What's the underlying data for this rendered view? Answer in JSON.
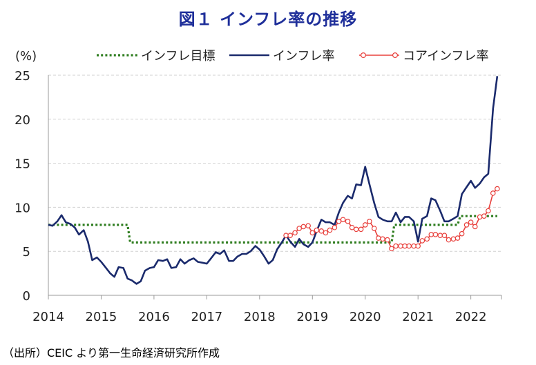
{
  "title": "図１ インフレ率の推移",
  "source": "（出所）CEIC より第一生命経済研究所作成",
  "colors": {
    "title": "#1f2f9a",
    "target": "#2e7d1f",
    "inflation": "#1a2a6c",
    "core": "#e8403c",
    "grid": "#d0d0d0"
  },
  "chart_data": {
    "type": "line",
    "title": "",
    "ylabel": "(%)",
    "xlabel": "",
    "xlim": [
      2014.0,
      2022.58
    ],
    "ylim": [
      0,
      25
    ],
    "yticks": [
      0,
      5,
      10,
      15,
      20,
      25
    ],
    "xticks": [
      "2014",
      "2015",
      "2016",
      "2017",
      "2018",
      "2019",
      "2020",
      "2021",
      "2022"
    ],
    "grid": true,
    "legend_position": "top",
    "series": [
      {
        "name": "インフレ目標",
        "style": "dotted",
        "color": "#2e7d1f",
        "x": [
          2014.0,
          2015.5,
          2015.55,
          2020.5,
          2020.55,
          2021.75,
          2021.8,
          2022.5
        ],
        "y": [
          8,
          8,
          6,
          6,
          8,
          8,
          9,
          9
        ]
      },
      {
        "name": "インフレ率",
        "style": "solid",
        "color": "#1a2a6c",
        "x": [
          2014.0,
          2014.08,
          2014.17,
          2014.25,
          2014.33,
          2014.42,
          2014.5,
          2014.58,
          2014.67,
          2014.75,
          2014.83,
          2014.92,
          2015.0,
          2015.08,
          2015.17,
          2015.25,
          2015.33,
          2015.42,
          2015.5,
          2015.58,
          2015.67,
          2015.75,
          2015.83,
          2015.92,
          2016.0,
          2016.08,
          2016.17,
          2016.25,
          2016.33,
          2016.42,
          2016.5,
          2016.58,
          2016.67,
          2016.75,
          2016.83,
          2016.92,
          2017.0,
          2017.08,
          2017.17,
          2017.25,
          2017.33,
          2017.42,
          2017.5,
          2017.58,
          2017.67,
          2017.75,
          2017.83,
          2017.92,
          2018.0,
          2018.08,
          2018.17,
          2018.25,
          2018.33,
          2018.42,
          2018.5,
          2018.58,
          2018.67,
          2018.75,
          2018.83,
          2018.92,
          2019.0,
          2019.08,
          2019.17,
          2019.25,
          2019.33,
          2019.42,
          2019.5,
          2019.58,
          2019.67,
          2019.75,
          2019.83,
          2019.92,
          2020.0,
          2020.08,
          2020.17,
          2020.25,
          2020.33,
          2020.42,
          2020.5,
          2020.58,
          2020.67,
          2020.75,
          2020.83,
          2020.92,
          2021.0,
          2021.08,
          2021.17,
          2021.25,
          2021.33,
          2021.42,
          2021.5,
          2021.58,
          2021.67,
          2021.75,
          2021.83,
          2021.92,
          2022.0,
          2022.08,
          2022.17,
          2022.25,
          2022.33,
          2022.42,
          2022.5
        ],
        "y": [
          8.0,
          7.9,
          8.4,
          9.1,
          8.3,
          8.1,
          7.7,
          6.9,
          7.4,
          6.1,
          4.0,
          4.3,
          3.8,
          3.2,
          2.5,
          2.1,
          3.2,
          3.1,
          1.9,
          1.7,
          1.3,
          1.6,
          2.8,
          3.1,
          3.2,
          4.0,
          3.9,
          4.1,
          3.1,
          3.2,
          4.1,
          3.6,
          4.0,
          4.2,
          3.8,
          3.7,
          3.6,
          4.2,
          4.9,
          4.7,
          5.1,
          3.9,
          3.9,
          4.4,
          4.7,
          4.7,
          5.0,
          5.6,
          5.2,
          4.5,
          3.6,
          4.0,
          5.2,
          6.0,
          6.8,
          6.1,
          5.5,
          6.4,
          5.8,
          5.5,
          6.0,
          7.3,
          8.6,
          8.3,
          8.3,
          8.0,
          9.4,
          10.5,
          11.3,
          11.0,
          12.6,
          12.5,
          14.6,
          12.6,
          10.5,
          8.9,
          8.6,
          8.4,
          8.4,
          9.4,
          8.3,
          8.9,
          8.9,
          8.4,
          6.1,
          8.7,
          9.0,
          11.0,
          10.8,
          9.6,
          8.4,
          8.4,
          8.7,
          9.0,
          11.5,
          12.3,
          13.0,
          12.2,
          12.7,
          13.4,
          13.8,
          21.2,
          24.9
        ]
      },
      {
        "name": "コアインフレ率",
        "style": "solid-markers",
        "color": "#e8403c",
        "x": [
          2018.5,
          2018.58,
          2018.67,
          2018.75,
          2018.83,
          2018.92,
          2019.0,
          2019.08,
          2019.17,
          2019.25,
          2019.33,
          2019.42,
          2019.5,
          2019.58,
          2019.67,
          2019.75,
          2019.83,
          2019.92,
          2020.0,
          2020.08,
          2020.17,
          2020.25,
          2020.33,
          2020.42,
          2020.5,
          2020.58,
          2020.67,
          2020.75,
          2020.83,
          2020.92,
          2021.0,
          2021.08,
          2021.17,
          2021.25,
          2021.33,
          2021.42,
          2021.5,
          2021.58,
          2021.67,
          2021.75,
          2021.83,
          2021.92,
          2022.0,
          2022.08,
          2022.17,
          2022.25,
          2022.33,
          2022.42,
          2022.5
        ],
        "y": [
          6.8,
          6.8,
          7.1,
          7.6,
          7.8,
          7.9,
          7.1,
          7.4,
          7.3,
          7.1,
          7.4,
          7.7,
          8.4,
          8.6,
          8.4,
          7.7,
          7.5,
          7.5,
          8.0,
          8.4,
          7.6,
          6.5,
          6.4,
          6.3,
          5.3,
          5.6,
          5.6,
          5.6,
          5.6,
          5.6,
          5.6,
          6.2,
          6.4,
          6.9,
          6.9,
          6.8,
          6.8,
          6.3,
          6.4,
          6.5,
          7.0,
          8.0,
          8.3,
          7.8,
          8.9,
          9.0,
          9.6,
          11.6,
          12.1
        ]
      }
    ]
  }
}
